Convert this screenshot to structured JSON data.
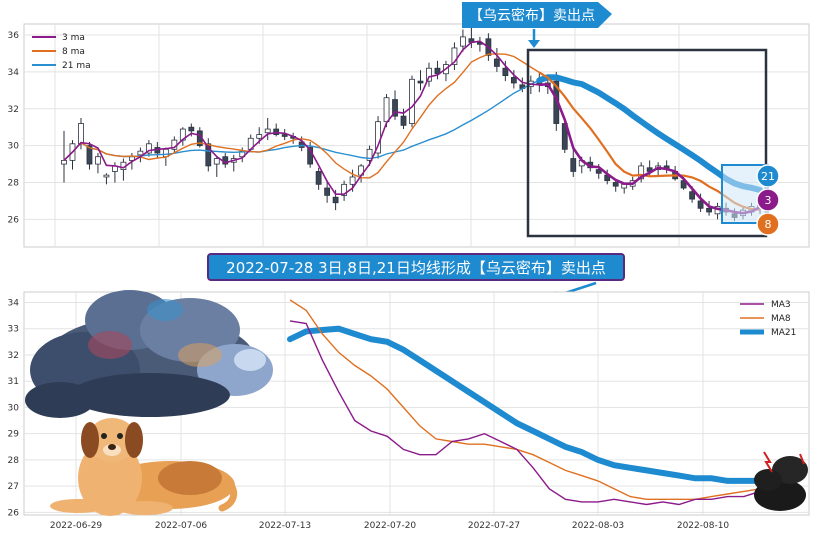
{
  "chart_data": [
    {
      "type": "candlestick",
      "ylim": [
        24.5,
        36.6
      ],
      "yticks": [
        26,
        28,
        30,
        32,
        34,
        36
      ],
      "grid": true,
      "legend": {
        "position": "top-left",
        "entries": [
          {
            "label": "3 ma",
            "color": "#8b1a8b"
          },
          {
            "label": "8 ma",
            "color": "#e07020"
          },
          {
            "label": "21 ma",
            "color": "#2a8fd0"
          }
        ]
      },
      "candles": [
        [
          29.0,
          30.8,
          28.0,
          29.2
        ],
        [
          29.2,
          30.3,
          28.7,
          30.1
        ],
        [
          30.1,
          31.5,
          29.8,
          31.2
        ],
        [
          30.0,
          30.2,
          28.7,
          29.0
        ],
        [
          29.0,
          29.6,
          28.5,
          29.4
        ],
        [
          28.3,
          28.5,
          27.9,
          28.4
        ],
        [
          28.6,
          29.1,
          28.0,
          28.9
        ],
        [
          28.7,
          29.3,
          28.1,
          29.1
        ],
        [
          29.2,
          29.6,
          28.7,
          29.4
        ],
        [
          29.5,
          29.9,
          29.1,
          29.7
        ],
        [
          29.6,
          30.3,
          29.4,
          30.1
        ],
        [
          29.9,
          30.2,
          29.3,
          29.6
        ],
        [
          29.4,
          29.9,
          28.9,
          29.8
        ],
        [
          29.8,
          30.5,
          29.6,
          30.3
        ],
        [
          30.3,
          31.0,
          30.0,
          30.9
        ],
        [
          31.0,
          31.2,
          30.5,
          30.8
        ],
        [
          30.8,
          31.0,
          29.9,
          30.0
        ],
        [
          30.1,
          30.4,
          28.6,
          28.9
        ],
        [
          29.0,
          29.4,
          28.3,
          29.3
        ],
        [
          29.4,
          29.6,
          28.8,
          29.0
        ],
        [
          29.1,
          29.5,
          28.6,
          29.3
        ],
        [
          29.4,
          29.9,
          29.1,
          29.7
        ],
        [
          29.8,
          30.6,
          29.7,
          30.4
        ],
        [
          30.4,
          31.0,
          30.1,
          30.6
        ],
        [
          30.7,
          31.5,
          30.3,
          30.9
        ],
        [
          30.9,
          31.2,
          30.5,
          30.6
        ],
        [
          30.6,
          30.9,
          30.3,
          30.5
        ],
        [
          30.5,
          30.7,
          30.1,
          30.4
        ],
        [
          30.2,
          30.5,
          29.7,
          29.9
        ],
        [
          29.9,
          30.2,
          28.8,
          29.0
        ],
        [
          28.6,
          28.8,
          27.6,
          27.9
        ],
        [
          27.7,
          28.1,
          26.9,
          27.3
        ],
        [
          27.2,
          27.6,
          26.5,
          26.9
        ],
        [
          27.3,
          28.1,
          27.0,
          27.9
        ],
        [
          27.9,
          28.7,
          27.5,
          28.3
        ],
        [
          28.4,
          29.0,
          28.0,
          28.9
        ],
        [
          29.2,
          30.0,
          28.9,
          29.8
        ],
        [
          29.6,
          31.6,
          29.3,
          31.3
        ],
        [
          31.3,
          32.8,
          31.0,
          32.6
        ],
        [
          32.5,
          33.0,
          31.4,
          31.6
        ],
        [
          31.6,
          32.0,
          30.9,
          31.1
        ],
        [
          31.2,
          33.8,
          31.0,
          33.6
        ],
        [
          33.5,
          34.1,
          33.0,
          33.4
        ],
        [
          33.5,
          34.5,
          33.2,
          34.2
        ],
        [
          34.2,
          34.6,
          33.6,
          33.9
        ],
        [
          33.9,
          34.6,
          33.5,
          34.4
        ],
        [
          34.4,
          35.6,
          34.1,
          35.3
        ],
        [
          35.4,
          36.3,
          35.1,
          35.9
        ],
        [
          35.8,
          36.4,
          35.3,
          35.6
        ],
        [
          35.6,
          35.9,
          35.1,
          35.5
        ],
        [
          35.8,
          36.1,
          34.6,
          34.9
        ],
        [
          34.7,
          35.3,
          34.0,
          34.3
        ],
        [
          34.2,
          34.6,
          33.5,
          33.8
        ],
        [
          33.7,
          34.1,
          33.1,
          33.4
        ],
        [
          33.3,
          33.7,
          32.9,
          33.1
        ],
        [
          33.2,
          33.8,
          32.8,
          33.5
        ],
        [
          33.4,
          34.0,
          32.9,
          33.3
        ],
        [
          33.4,
          33.6,
          32.8,
          33.2
        ],
        [
          33.5,
          34.0,
          30.8,
          31.2
        ],
        [
          31.2,
          31.5,
          29.6,
          29.8
        ],
        [
          29.3,
          29.9,
          28.3,
          28.6
        ],
        [
          28.9,
          29.4,
          28.5,
          29.2
        ],
        [
          29.1,
          29.4,
          28.6,
          28.8
        ],
        [
          28.7,
          29.0,
          28.2,
          28.5
        ],
        [
          28.4,
          28.7,
          27.9,
          28.1
        ],
        [
          28.0,
          28.2,
          27.5,
          27.8
        ],
        [
          27.7,
          28.0,
          27.4,
          27.9
        ],
        [
          27.8,
          28.3,
          27.6,
          28.1
        ],
        [
          28.2,
          29.1,
          28.0,
          28.9
        ],
        [
          28.8,
          29.2,
          28.4,
          28.6
        ],
        [
          28.7,
          29.1,
          28.4,
          28.9
        ],
        [
          28.9,
          29.2,
          28.5,
          28.7
        ],
        [
          28.6,
          28.9,
          28.1,
          28.2
        ],
        [
          28.1,
          28.3,
          27.6,
          27.7
        ],
        [
          27.5,
          27.8,
          26.9,
          27.1
        ],
        [
          27.0,
          27.4,
          26.4,
          26.6
        ],
        [
          26.6,
          27.0,
          26.2,
          26.4
        ],
        [
          26.3,
          26.9,
          26.0,
          26.7
        ],
        [
          26.6,
          26.9,
          26.2,
          26.4
        ],
        [
          26.3,
          26.6,
          25.9,
          26.1
        ],
        [
          26.2,
          26.7,
          26.0,
          26.5
        ],
        [
          26.4,
          26.9,
          26.2,
          26.7
        ],
        [
          26.6,
          27.1,
          26.3,
          26.8
        ]
      ],
      "annotation": {
        "label": "【乌云密布】卖出点"
      },
      "end_badges": [
        "21",
        "3",
        "8"
      ]
    },
    {
      "type": "line",
      "ylim": [
        25.9,
        34.4
      ],
      "yticks": [
        26,
        27,
        28,
        29,
        30,
        31,
        32,
        33,
        34
      ],
      "xticks": [
        "2022-06-29",
        "2022-07-06",
        "2022-07-13",
        "2022-07-20",
        "2022-07-27",
        "2022-08-03",
        "2022-08-10"
      ],
      "grid": true,
      "legend": {
        "position": "top-right",
        "entries": [
          {
            "label": "MA3",
            "color": "#8b1a8b"
          },
          {
            "label": "MA8",
            "color": "#e07020"
          },
          {
            "label": "MA21",
            "color": "#1e8ad0"
          }
        ]
      },
      "series": [
        {
          "name": "MA3",
          "color": "#8b1a8b",
          "x": [
            0,
            1,
            2,
            3,
            4,
            5,
            6,
            7,
            8,
            9,
            10,
            11,
            12,
            13,
            14,
            15,
            16,
            17,
            18,
            19,
            20,
            21,
            22,
            23,
            24,
            25,
            26,
            27,
            28,
            29
          ],
          "values": [
            33.3,
            33.2,
            31.8,
            30.6,
            29.5,
            29.1,
            28.9,
            28.4,
            28.2,
            28.2,
            28.7,
            28.8,
            29.0,
            28.7,
            28.4,
            27.7,
            26.9,
            26.5,
            26.4,
            26.4,
            26.5,
            26.4,
            26.3,
            26.4,
            26.3,
            26.5,
            26.5,
            26.6,
            26.6,
            26.8
          ]
        },
        {
          "name": "MA8",
          "color": "#e07020",
          "x": [
            0,
            1,
            2,
            3,
            4,
            5,
            6,
            7,
            8,
            9,
            10,
            11,
            12,
            13,
            14,
            15,
            16,
            17,
            18,
            19,
            20,
            21,
            22,
            23,
            24,
            25,
            26,
            27,
            28,
            29
          ],
          "values": [
            34.1,
            33.7,
            32.8,
            32.1,
            31.6,
            31.2,
            30.7,
            30.0,
            29.3,
            28.8,
            28.7,
            28.6,
            28.6,
            28.5,
            28.4,
            28.2,
            27.9,
            27.6,
            27.4,
            27.2,
            26.9,
            26.6,
            26.5,
            26.5,
            26.5,
            26.5,
            26.6,
            26.7,
            26.8,
            26.9
          ]
        },
        {
          "name": "MA21",
          "color": "#1e8ad0",
          "x": [
            0,
            1,
            2,
            3,
            4,
            5,
            6,
            7,
            8,
            9,
            10,
            11,
            12,
            13,
            14,
            15,
            16,
            17,
            18,
            19,
            20,
            21,
            22,
            23,
            24,
            25,
            26,
            27,
            28,
            29
          ],
          "values": [
            32.6,
            32.9,
            32.95,
            33.0,
            32.8,
            32.6,
            32.5,
            32.2,
            31.8,
            31.4,
            31.0,
            30.6,
            30.2,
            29.8,
            29.4,
            29.1,
            28.8,
            28.5,
            28.3,
            28.0,
            27.8,
            27.7,
            27.6,
            27.5,
            27.4,
            27.3,
            27.3,
            27.2,
            27.2,
            27.2
          ]
        }
      ],
      "annotation": {
        "label": "2022-07-28 3日,8日,21日均线形成【乌云密布】卖出点"
      }
    }
  ],
  "colors": {
    "ma3": "#8b1a8b",
    "ma8": "#e07020",
    "ma21": "#1e8ad0",
    "banner": "#1e8ad0",
    "box": "#2c3340"
  }
}
